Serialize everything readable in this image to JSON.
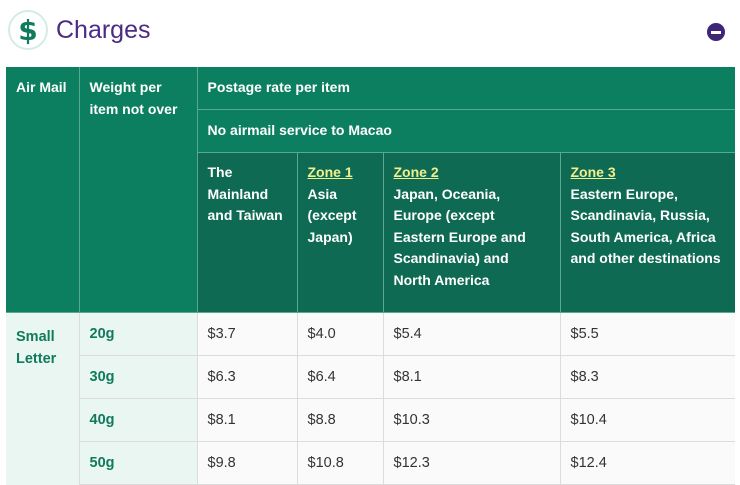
{
  "section": {
    "icon": "dollar-icon",
    "icon_glyph": "$",
    "title": "Charges",
    "collapse_icon": "minus-circle-icon"
  },
  "table": {
    "col_airmail": "Air Mail",
    "col_weight": "Weight per item not over",
    "col_postage": "Postage rate per item",
    "notice": "No airmail service to Macao",
    "zones": [
      {
        "link": "",
        "desc": "The Mainland and Taiwan"
      },
      {
        "link": "Zone 1",
        "desc": "Asia (except Japan)"
      },
      {
        "link": "Zone 2",
        "desc": "Japan, Oceania, Europe (except Eastern Europe and Scandinavia) and North America"
      },
      {
        "link": "Zone 3",
        "desc": "Eastern Europe, Scandinavia, Russia, South America, Africa and other destinations"
      }
    ],
    "category": "Small Letter",
    "rows": [
      {
        "weight": "20g",
        "rates": [
          "$3.7",
          "$4.0",
          "$5.4",
          "$5.5"
        ]
      },
      {
        "weight": "30g",
        "rates": [
          "$6.3",
          "$6.4",
          "$8.1",
          "$8.3"
        ]
      },
      {
        "weight": "40g",
        "rates": [
          "$8.1",
          "$8.8",
          "$10.3",
          "$10.4"
        ]
      },
      {
        "weight": "50g",
        "rates": [
          "$9.8",
          "$10.8",
          "$12.3",
          "$12.4"
        ]
      }
    ]
  },
  "colors": {
    "header_green": "#0d7f61",
    "zone_header_green": "#0f6a53",
    "title_purple": "#4a2c84",
    "zone_link_yellow": "#f2f08c"
  }
}
